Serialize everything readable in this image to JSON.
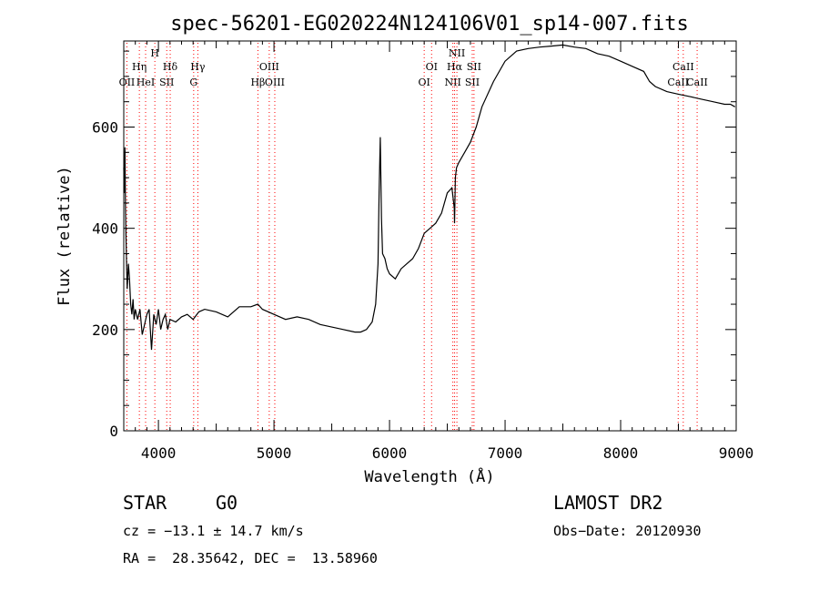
{
  "chart_data": {
    "type": "line",
    "title": "spec-56201-EG020224N124106V01_sp14-007.fits",
    "xlabel": "Wavelength (Å)",
    "ylabel": "Flux (relative)",
    "xlim": [
      3700,
      9000
    ],
    "ylim": [
      0,
      770
    ],
    "x_ticks": [
      4000,
      5000,
      6000,
      7000,
      8000,
      9000
    ],
    "y_ticks": [
      0,
      200,
      400,
      600
    ],
    "grid": false,
    "line_color": "#000000",
    "marker_color": "#ff0000",
    "series": [
      {
        "x": [
          3700,
          3705,
          3710,
          3715,
          3720,
          3725,
          3730,
          3740,
          3750,
          3760,
          3770,
          3780,
          3790,
          3800,
          3820,
          3840,
          3860,
          3880,
          3900,
          3920,
          3940,
          3960,
          3980,
          4000,
          4020,
          4040,
          4060,
          4080,
          4100,
          4150,
          4200,
          4250,
          4300,
          4350,
          4400,
          4500,
          4600,
          4700,
          4800,
          4860,
          4900,
          5000,
          5100,
          5200,
          5300,
          5400,
          5500,
          5600,
          5700,
          5750,
          5800,
          5850,
          5880,
          5900,
          5910,
          5920,
          5930,
          5940,
          5960,
          5980,
          6000,
          6050,
          6100,
          6150,
          6200,
          6250,
          6300,
          6350,
          6400,
          6450,
          6500,
          6540,
          6560,
          6563,
          6570,
          6580,
          6600,
          6650,
          6700,
          6750,
          6800,
          6900,
          7000,
          7100,
          7200,
          7300,
          7400,
          7500,
          7600,
          7700,
          7800,
          7900,
          8000,
          8100,
          8200,
          8250,
          8300,
          8400,
          8500,
          8600,
          8700,
          8800,
          8900,
          8950,
          8990
        ],
        "y": [
          520,
          470,
          560,
          440,
          380,
          320,
          280,
          330,
          300,
          250,
          230,
          260,
          220,
          240,
          220,
          240,
          190,
          210,
          230,
          240,
          160,
          230,
          210,
          240,
          200,
          220,
          230,
          200,
          220,
          215,
          225,
          230,
          220,
          235,
          240,
          235,
          225,
          245,
          245,
          250,
          240,
          230,
          220,
          225,
          220,
          210,
          205,
          200,
          195,
          195,
          200,
          215,
          250,
          330,
          470,
          580,
          420,
          350,
          340,
          320,
          310,
          300,
          320,
          330,
          340,
          360,
          390,
          400,
          410,
          430,
          470,
          480,
          440,
          410,
          500,
          520,
          530,
          550,
          570,
          600,
          640,
          690,
          730,
          750,
          755,
          758,
          760,
          762,
          758,
          755,
          745,
          740,
          730,
          720,
          710,
          690,
          680,
          670,
          665,
          660,
          655,
          650,
          645,
          645,
          640
        ]
      }
    ],
    "lines": [
      {
        "name": "OII",
        "wavelength": 3727
      },
      {
        "name": "Hη",
        "wavelength": 3835
      },
      {
        "name": "HeI",
        "wavelength": 3889
      },
      {
        "name": "H",
        "wavelength": 3969
      },
      {
        "name": "SII",
        "wavelength": 4072
      },
      {
        "name": "Hδ",
        "wavelength": 4102
      },
      {
        "name": "G",
        "wavelength": 4305
      },
      {
        "name": "Hγ",
        "wavelength": 4341
      },
      {
        "name": "Hβ",
        "wavelength": 4861
      },
      {
        "name": "OIII",
        "wavelength": 4959
      },
      {
        "name": "OIII",
        "wavelength": 5007
      },
      {
        "name": "OI",
        "wavelength": 6300
      },
      {
        "name": "OI",
        "wavelength": 6364
      },
      {
        "name": "NII",
        "wavelength": 6548
      },
      {
        "name": "Hα",
        "wavelength": 6563
      },
      {
        "name": "NII",
        "wavelength": 6583
      },
      {
        "name": "SII",
        "wavelength": 6716
      },
      {
        "name": "SII",
        "wavelength": 6731
      },
      {
        "name": "CaII",
        "wavelength": 8498
      },
      {
        "name": "CaII",
        "wavelength": 8542
      },
      {
        "name": "CaII",
        "wavelength": 8662
      }
    ]
  },
  "info": {
    "class": "STAR",
    "subclass": "G0",
    "survey": "LAMOST DR2",
    "cz": "cz = −13.1 ± 14.7 km/s",
    "obs_date": "Obs−Date: 20120930",
    "coords": "RA =  28.35642, DEC =  13.58960"
  }
}
